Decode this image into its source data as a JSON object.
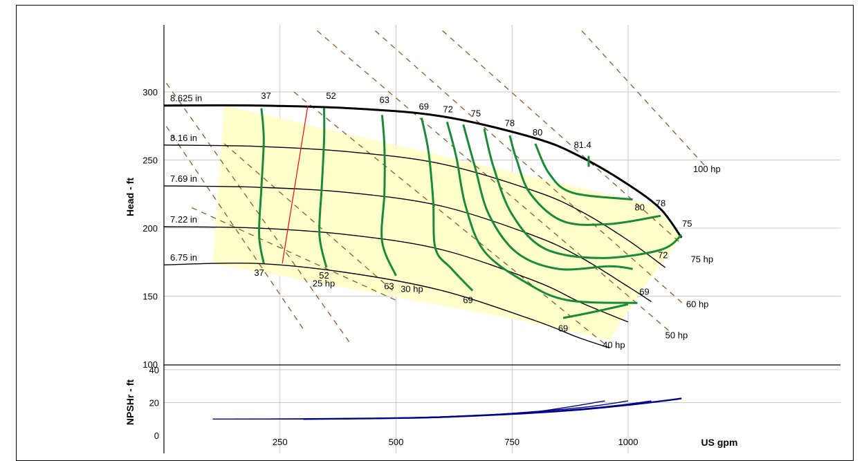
{
  "chart_data": [
    {
      "type": "line",
      "xlabel": "US gpm",
      "ylabel": "Head - ft",
      "xlim": [
        0,
        1100
      ],
      "ylim": [
        100,
        350
      ],
      "x_ticks": [
        250,
        500,
        750,
        1000
      ],
      "y_ticks": [
        100,
        150,
        200,
        250,
        300
      ],
      "grid": true,
      "operating_region": {
        "color": "#ffffcc",
        "points": [
          [
            130,
            290
          ],
          [
            1055,
            217
          ],
          [
            1115,
            193
          ],
          [
            1020,
            150
          ],
          [
            960,
            118
          ],
          [
            730,
            135
          ],
          [
            105,
            174
          ]
        ]
      },
      "impeller_curves": {
        "color": "#000000",
        "series": [
          {
            "name": "8.625 in",
            "bold": true,
            "points": [
              [
                0,
                290
              ],
              [
                200,
                290
              ],
              [
                400,
                288
              ],
              [
                600,
                282
              ],
              [
                800,
                266
              ],
              [
                900,
                252
              ],
              [
                1000,
                232
              ],
              [
                1070,
                214
              ],
              [
                1115,
                193
              ]
            ]
          },
          {
            "name": "8.16 in",
            "points": [
              [
                0,
                261
              ],
              [
                200,
                260
              ],
              [
                400,
                256
              ],
              [
                600,
                247
              ],
              [
                800,
                227
              ],
              [
                900,
                212
              ],
              [
                1000,
                191
              ],
              [
                1080,
                171
              ]
            ]
          },
          {
            "name": "7.69 in",
            "points": [
              [
                0,
                231
              ],
              [
                200,
                230
              ],
              [
                400,
                226
              ],
              [
                600,
                216
              ],
              [
                800,
                194
              ],
              [
                900,
                178
              ],
              [
                1000,
                157
              ],
              [
                1050,
                146
              ]
            ]
          },
          {
            "name": "7.22 in",
            "points": [
              [
                0,
                201
              ],
              [
                200,
                200
              ],
              [
                400,
                195
              ],
              [
                600,
                184
              ],
              [
                800,
                161
              ],
              [
                900,
                145
              ],
              [
                1000,
                131
              ]
            ]
          },
          {
            "name": "6.75 in",
            "points": [
              [
                0,
                173
              ],
              [
                200,
                174
              ],
              [
                400,
                167
              ],
              [
                600,
                154
              ],
              [
                800,
                132
              ],
              [
                890,
                120
              ],
              [
                960,
                112
              ]
            ]
          }
        ]
      },
      "efficiency_curves": {
        "color": "#1a8a3a",
        "series": [
          {
            "name": "37",
            "points": [
              [
                210,
                288
              ],
              [
                215,
                265
              ],
              [
                210,
                230
              ],
              [
                205,
                195
              ],
              [
                215,
                174
              ]
            ]
          },
          {
            "name": "52",
            "points": [
              [
                345,
                288
              ],
              [
                345,
                265
              ],
              [
                340,
                230
              ],
              [
                335,
                195
              ],
              [
                350,
                171
              ]
            ]
          },
          {
            "name": "63",
            "points": [
              [
                470,
                283
              ],
              [
                475,
                260
              ],
              [
                475,
                226
              ],
              [
                470,
                190
              ],
              [
                500,
                165
              ]
            ]
          },
          {
            "name": "69",
            "points": [
              [
                555,
                281
              ],
              [
                570,
                256
              ],
              [
                580,
                220
              ],
              [
                585,
                185
              ],
              [
                620,
                170
              ],
              [
                665,
                154
              ]
            ]
          },
          {
            "name": "69",
            "points": [
              [
                610,
                278
              ],
              [
                630,
                252
              ],
              [
                650,
                216
              ],
              [
                690,
                183
              ],
              [
                780,
                160
              ],
              [
                870,
                147
              ],
              [
                1020,
                145
              ]
            ]
          },
          {
            "name": "72",
            "points": [
              [
                645,
                276
              ],
              [
                670,
                245
              ],
              [
                700,
                210
              ],
              [
                760,
                182
              ],
              [
                850,
                170
              ],
              [
                960,
                172
              ],
              [
                1010,
                170
              ]
            ]
          },
          {
            "name": "75",
            "points": [
              [
                690,
                273
              ],
              [
                710,
                245
              ],
              [
                750,
                210
              ],
              [
                820,
                185
              ],
              [
                940,
                178
              ],
              [
                1070,
                184
              ],
              [
                1115,
                195
              ]
            ]
          },
          {
            "name": "78",
            "points": [
              [
                745,
                268
              ],
              [
                760,
                250
              ],
              [
                790,
                225
              ],
              [
                860,
                205
              ],
              [
                960,
                203
              ],
              [
                1070,
                209
              ]
            ]
          },
          {
            "name": "80",
            "points": [
              [
                800,
                262
              ],
              [
                830,
                240
              ],
              [
                880,
                226
              ],
              [
                1010,
                221
              ]
            ]
          },
          {
            "name": "69",
            "points": [
              [
                860,
                134
              ],
              [
                920,
                138
              ],
              [
                1000,
                144
              ]
            ]
          },
          {
            "name": "81.4",
            "points": [
              [
                915,
                245
              ],
              [
                915,
                253
              ]
            ]
          }
        ]
      },
      "efficiency_labels": [
        {
          "text": "37",
          "x": 220,
          "y": 295
        },
        {
          "text": "52",
          "x": 360,
          "y": 295
        },
        {
          "text": "63",
          "x": 475,
          "y": 292
        },
        {
          "text": "69",
          "x": 560,
          "y": 287
        },
        {
          "text": "72",
          "x": 612,
          "y": 285
        },
        {
          "text": "75",
          "x": 672,
          "y": 282
        },
        {
          "text": "78",
          "x": 745,
          "y": 275
        },
        {
          "text": "80",
          "x": 805,
          "y": 268
        },
        {
          "text": "81.4",
          "x": 902,
          "y": 259
        },
        {
          "text": "80",
          "x": 1025,
          "y": 213
        },
        {
          "text": "78",
          "x": 1070,
          "y": 216
        },
        {
          "text": "75",
          "x": 1127,
          "y": 201
        },
        {
          "text": "72",
          "x": 1075,
          "y": 178
        },
        {
          "text": "69",
          "x": 1035,
          "y": 151
        },
        {
          "text": "69",
          "x": 655,
          "y": 145
        },
        {
          "text": "69",
          "x": 860,
          "y": 124
        },
        {
          "text": "63",
          "x": 485,
          "y": 155
        },
        {
          "text": "52",
          "x": 345,
          "y": 163
        },
        {
          "text": "37",
          "x": 205,
          "y": 165
        }
      ],
      "power_lines": {
        "color": "#8b5a2b",
        "series": [
          {
            "name": "25 hp",
            "points": [
              [
                60,
                215
              ],
              [
                500,
                147
              ]
            ]
          },
          {
            "name": "30 hp",
            "points": [
              [
                130,
                262
              ],
              [
                500,
                152
              ]
            ]
          },
          {
            "name": "40 hp",
            "points": [
              [
                280,
                300
              ],
              [
                960,
                112
              ]
            ]
          },
          {
            "name": "50 hp",
            "points": [
              [
                330,
                345
              ],
              [
                1090,
                124
              ]
            ]
          },
          {
            "name": "60 hp",
            "points": [
              [
                455,
                345
              ],
              [
                1120,
                144
              ]
            ]
          },
          {
            "name": "75 hp",
            "points": [
              [
                600,
                345
              ],
              [
                1110,
                190
              ]
            ]
          },
          {
            "name": "100 hp",
            "points": [
              [
                900,
                345
              ],
              [
                1170,
                244
              ]
            ]
          },
          {
            "name": "",
            "points": [
              [
                -45,
                300
              ],
              [
                300,
                126
              ]
            ]
          },
          {
            "name": "",
            "points": [
              [
                -85,
                350
              ],
              [
                400,
                116
              ]
            ]
          }
        ]
      },
      "power_labels": [
        {
          "text": "25 hp",
          "x": 320,
          "y": 157
        },
        {
          "text": "30 hp",
          "x": 510,
          "y": 153
        },
        {
          "text": "40 hp",
          "x": 945,
          "y": 112
        },
        {
          "text": "50 hp",
          "x": 1080,
          "y": 119
        },
        {
          "text": "60 hp",
          "x": 1125,
          "y": 142
        },
        {
          "text": "75 hp",
          "x": 1135,
          "y": 175
        },
        {
          "text": "100 hp",
          "x": 1140,
          "y": 241
        }
      ],
      "npsh_line": {
        "color": "#ff0000",
        "points": [
          [
            310,
            290
          ],
          [
            255,
            174
          ]
        ]
      }
    },
    {
      "type": "line",
      "xlabel": "US gpm",
      "ylabel": "NPSHr - ft",
      "xlim": [
        0,
        1100
      ],
      "ylim": [
        0,
        42
      ],
      "x_ticks": [
        250,
        500,
        750,
        1000
      ],
      "y_ticks": [
        0,
        20,
        40
      ],
      "grid": true,
      "line_color": "#00008b",
      "series": [
        {
          "points": [
            [
              105,
              10
            ],
            [
              300,
              10
            ],
            [
              500,
              10.5
            ],
            [
              650,
              12
            ],
            [
              800,
              14.5
            ],
            [
              950,
              21
            ]
          ]
        },
        {
          "points": [
            [
              150,
              10
            ],
            [
              400,
              10.2
            ],
            [
              600,
              11
            ],
            [
              750,
              13.5
            ],
            [
              900,
              17
            ],
            [
              1000,
              21
            ]
          ]
        },
        {
          "points": [
            [
              200,
              10
            ],
            [
              450,
              10.4
            ],
            [
              650,
              11.8
            ],
            [
              800,
              14
            ],
            [
              950,
              17.5
            ],
            [
              1050,
              21
            ]
          ]
        },
        {
          "points": [
            [
              250,
              10
            ],
            [
              500,
              10.6
            ],
            [
              700,
              12.5
            ],
            [
              850,
              15
            ],
            [
              1000,
              18.5
            ],
            [
              1085,
              21.5
            ]
          ]
        },
        {
          "points": [
            [
              300,
              10
            ],
            [
              550,
              10.8
            ],
            [
              750,
              13
            ],
            [
              900,
              15.8
            ],
            [
              1030,
              19.5
            ],
            [
              1115,
              22.5
            ]
          ]
        }
      ]
    }
  ]
}
